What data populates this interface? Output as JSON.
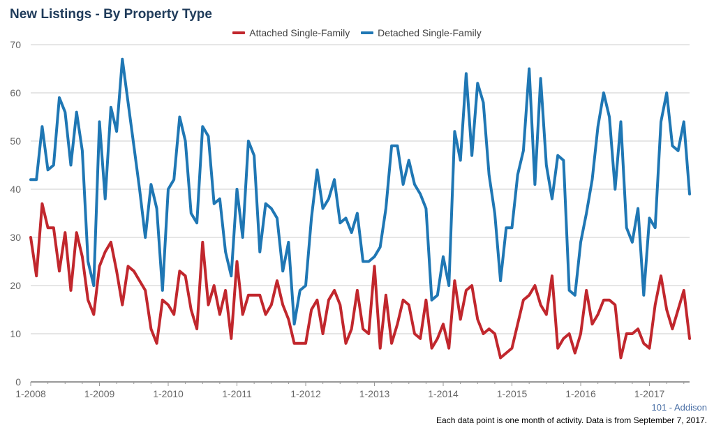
{
  "title": "New Listings - By Property Type",
  "region": "101 - Addison",
  "note": "Each data point is one month of activity. Data is from September 7, 2017.",
  "colors": {
    "attached": "#c1272d",
    "detached": "#1f77b4",
    "grid": "#cccccc",
    "axis": "#999999",
    "tick_text": "#666666"
  },
  "chart_data": {
    "type": "line",
    "title": "New Listings - By Property Type",
    "xlabel": "",
    "ylabel": "",
    "ylim": [
      0,
      70
    ],
    "yticks": [
      0,
      10,
      20,
      30,
      40,
      50,
      60,
      70
    ],
    "xtick_labels": [
      "1-2008",
      "1-2009",
      "1-2010",
      "1-2011",
      "1-2012",
      "1-2013",
      "1-2014",
      "1-2015",
      "1-2016",
      "1-2017"
    ],
    "x_start": "2008-01",
    "x_end": "2017-08",
    "grid": true,
    "legend_position": "top-center",
    "series": [
      {
        "name": "Attached Single-Family",
        "values": [
          30,
          22,
          37,
          32,
          32,
          23,
          31,
          19,
          31,
          26,
          17,
          14,
          24,
          27,
          29,
          23,
          16,
          24,
          23,
          21,
          19,
          11,
          8,
          17,
          16,
          14,
          23,
          22,
          15,
          11,
          29,
          16,
          20,
          14,
          19,
          9,
          25,
          14,
          18,
          18,
          18,
          14,
          16,
          21,
          16,
          13,
          8,
          8,
          8,
          15,
          17,
          10,
          17,
          19,
          16,
          8,
          11,
          19,
          11,
          10,
          24,
          7,
          18,
          8,
          12,
          17,
          16,
          10,
          9,
          17,
          7,
          9,
          12,
          7,
          21,
          13,
          19,
          20,
          13,
          10,
          11,
          10,
          5,
          6,
          7,
          12,
          17,
          18,
          20,
          16,
          14,
          22,
          7,
          9,
          10,
          6,
          10,
          19,
          12,
          14,
          17,
          17,
          16,
          5,
          10,
          10,
          11,
          8,
          7,
          16,
          22,
          15,
          11,
          15,
          19,
          9
        ]
      },
      {
        "name": "Detached Single-Family",
        "values": [
          42,
          42,
          53,
          44,
          45,
          59,
          56,
          45,
          56,
          48,
          25,
          20,
          54,
          38,
          57,
          52,
          67,
          58,
          49,
          40,
          30,
          41,
          36,
          19,
          40,
          42,
          55,
          50,
          35,
          33,
          53,
          51,
          37,
          38,
          27,
          22,
          40,
          30,
          50,
          47,
          27,
          37,
          36,
          34,
          23,
          29,
          12,
          19,
          20,
          34,
          44,
          36,
          38,
          42,
          33,
          34,
          31,
          35,
          25,
          25,
          26,
          28,
          36,
          49,
          49,
          41,
          46,
          41,
          39,
          36,
          17,
          18,
          26,
          20,
          52,
          46,
          64,
          47,
          62,
          58,
          43,
          35,
          21,
          32,
          32,
          43,
          48,
          65,
          41,
          63,
          45,
          38,
          47,
          46,
          19,
          18,
          29,
          35,
          42,
          53,
          60,
          55,
          40,
          54,
          32,
          29,
          36,
          18,
          34,
          32,
          54,
          60,
          49,
          48,
          54,
          39
        ]
      }
    ]
  }
}
